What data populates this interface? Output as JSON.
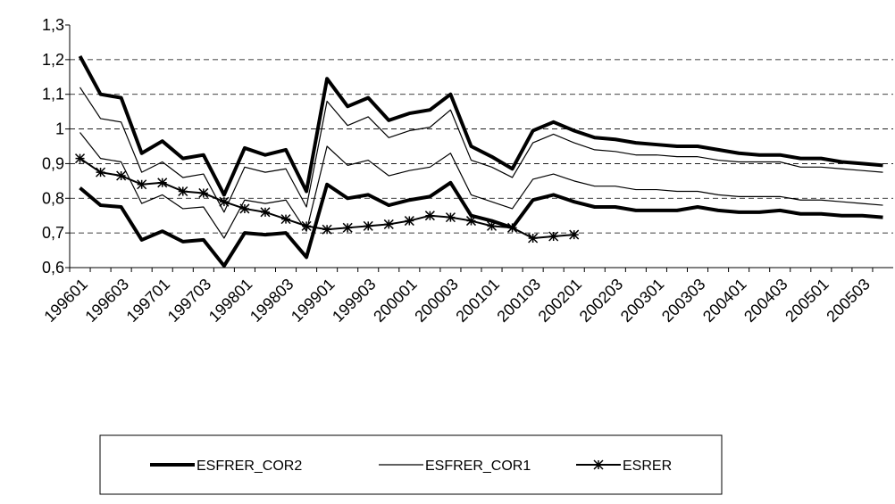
{
  "chart_data": {
    "type": "line",
    "categories": [
      "199601",
      null,
      "199603",
      null,
      "199701",
      null,
      "199703",
      null,
      "199801",
      null,
      "199803",
      null,
      "199901",
      null,
      "199903",
      null,
      "200001",
      null,
      "200003",
      null,
      "200101",
      null,
      "200103",
      null,
      "200201",
      null,
      "200203",
      null,
      "200301",
      null,
      "200303",
      null,
      "200401",
      null,
      "200403",
      null,
      "200501",
      null,
      "200503",
      null
    ],
    "series": [
      {
        "name": "ESFRER_COR2",
        "color": "#000000",
        "width": 4,
        "values": [
          1.21,
          1.1,
          1.09,
          0.93,
          0.965,
          0.915,
          0.925,
          0.81,
          0.945,
          0.925,
          0.94,
          0.82,
          1.145,
          1.065,
          1.09,
          1.025,
          1.045,
          1.055,
          1.1,
          0.95,
          0.92,
          0.885,
          0.995,
          1.02,
          0.995,
          0.975,
          0.97,
          0.96,
          0.955,
          0.95,
          0.95,
          0.94,
          0.93,
          0.925,
          0.925,
          0.915,
          0.915,
          0.905,
          0.9,
          0.895
        ]
      },
      {
        "name": "ESFRER_COR1",
        "color": "#000000",
        "width": 1.2,
        "values": [
          1.12,
          1.03,
          1.02,
          0.875,
          0.905,
          0.86,
          0.87,
          0.76,
          0.89,
          0.875,
          0.885,
          0.775,
          1.08,
          1.01,
          1.035,
          0.975,
          0.995,
          1.005,
          1.055,
          0.91,
          0.89,
          0.86,
          0.96,
          0.985,
          0.96,
          0.94,
          0.935,
          0.925,
          0.925,
          0.92,
          0.92,
          0.91,
          0.905,
          0.905,
          0.905,
          0.89,
          0.89,
          0.885,
          0.88,
          0.875
        ]
      },
      {
        "color": "#000000",
        "width": 1.2,
        "values": [
          0.99,
          0.915,
          0.905,
          0.785,
          0.81,
          0.77,
          0.775,
          0.685,
          0.795,
          0.785,
          0.795,
          0.705,
          0.95,
          0.895,
          0.91,
          0.865,
          0.88,
          0.89,
          0.93,
          0.81,
          0.79,
          0.77,
          0.855,
          0.87,
          0.85,
          0.835,
          0.835,
          0.825,
          0.825,
          0.82,
          0.82,
          0.81,
          0.805,
          0.805,
          0.805,
          0.795,
          0.795,
          0.79,
          0.785,
          0.78
        ]
      },
      {
        "color": "#000000",
        "width": 4,
        "values": [
          0.83,
          0.78,
          0.775,
          0.68,
          0.705,
          0.675,
          0.68,
          0.605,
          0.7,
          0.695,
          0.7,
          0.63,
          0.84,
          0.8,
          0.81,
          0.78,
          0.795,
          0.805,
          0.845,
          0.75,
          0.735,
          0.715,
          0.795,
          0.81,
          0.79,
          0.775,
          0.775,
          0.765,
          0.765,
          0.765,
          0.775,
          0.765,
          0.76,
          0.76,
          0.765,
          0.755,
          0.755,
          0.75,
          0.75,
          0.745
        ]
      },
      {
        "name": "ESRER",
        "color": "#000000",
        "width": 2,
        "marker": "star",
        "values": [
          0.915,
          0.875,
          0.865,
          0.84,
          0.845,
          0.82,
          0.815,
          0.79,
          0.77,
          0.76,
          0.74,
          0.72,
          0.71,
          0.715,
          0.72,
          0.725,
          0.735,
          0.75,
          0.745,
          0.735,
          0.72,
          0.715,
          0.685,
          0.69,
          0.695,
          null,
          null,
          null,
          null,
          null,
          null,
          null,
          null,
          null,
          null,
          null,
          null,
          null,
          null,
          null
        ]
      }
    ],
    "ylim": [
      0.6,
      1.3
    ],
    "yticks": [
      {
        "value": 0.6,
        "label": "0,6"
      },
      {
        "value": 0.7,
        "label": "0,7"
      },
      {
        "value": 0.8,
        "label": "0,8"
      },
      {
        "value": 0.9,
        "label": "0,9"
      },
      1,
      {
        "value": 1.1,
        "label": "1,1"
      },
      {
        "value": 1.2,
        "label": "1,2"
      },
      {
        "value": 1.3,
        "label": "1,3"
      }
    ],
    "grid": true,
    "legend": "bottom"
  }
}
